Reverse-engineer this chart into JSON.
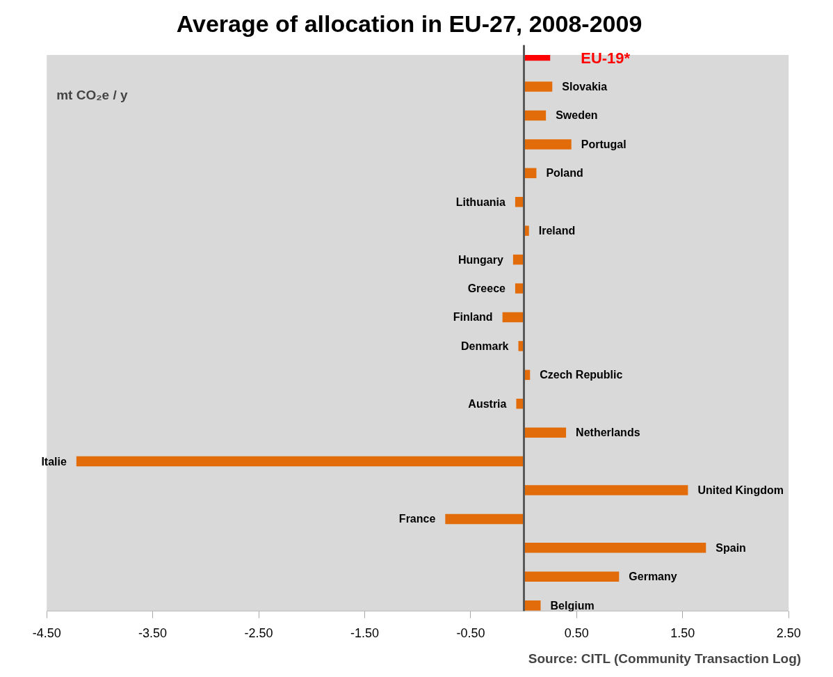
{
  "chart_data": {
    "type": "bar",
    "orientation": "horizontal",
    "title": "Average of allocation in EU-27, 2008-2009",
    "ylabel": "mt CO₂e / y",
    "categories": [
      "EU-19*",
      "Slovakia",
      "Sweden",
      "Portugal",
      "Poland",
      "Lithuania",
      "Ireland",
      "Hungary",
      "Greece",
      "Finland",
      "Denmark",
      "Czech Republic",
      "Austria",
      "Netherlands",
      "Italie",
      "United Kingdom",
      "France",
      "Spain",
      "Germany",
      "Belgium"
    ],
    "values": [
      0.25,
      0.27,
      0.21,
      0.45,
      0.12,
      -0.08,
      0.05,
      -0.1,
      -0.08,
      -0.2,
      -0.05,
      0.06,
      -0.07,
      0.4,
      -4.22,
      1.55,
      -0.74,
      1.72,
      0.9,
      0.16
    ],
    "colors": [
      "#ff0000",
      "#e36c0a",
      "#e36c0a",
      "#e36c0a",
      "#e36c0a",
      "#e36c0a",
      "#e36c0a",
      "#e36c0a",
      "#e36c0a",
      "#e36c0a",
      "#e36c0a",
      "#e36c0a",
      "#e36c0a",
      "#e36c0a",
      "#e36c0a",
      "#e36c0a",
      "#e36c0a",
      "#e36c0a",
      "#e36c0a",
      "#e36c0a"
    ],
    "xlim": [
      -4.5,
      2.5
    ],
    "xticks": [
      {
        "value": -4.5,
        "label": "-4.50"
      },
      {
        "value": -3.5,
        "label": "-3.50"
      },
      {
        "value": -2.5,
        "label": "-2.50"
      },
      {
        "value": -1.5,
        "label": "-1.50"
      },
      {
        "value": -0.5,
        "label": "-0.50"
      },
      {
        "value": 0.5,
        "label": "0.50"
      },
      {
        "value": 1.5,
        "label": "1.50"
      },
      {
        "value": 2.5,
        "label": "2.50"
      }
    ],
    "grid": false,
    "annotations": [
      "Source: CITL (Community Transaction Log)"
    ]
  }
}
